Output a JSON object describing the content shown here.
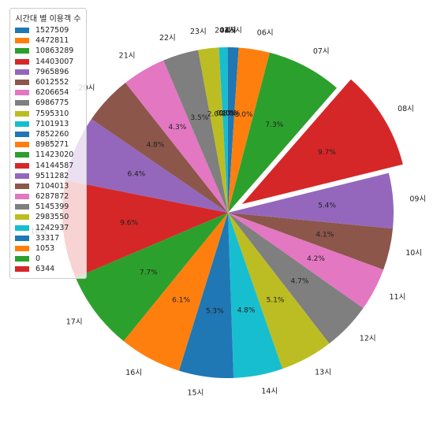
{
  "chart_data": {
    "type": "pie",
    "legend": {
      "title": "시간대 별 이용객 수",
      "placement": "top-left"
    },
    "start_angle_deg": 90,
    "counterclockwise": false,
    "exploded_label": "08시",
    "slices": [
      {
        "label": "05시",
        "value": 1527509,
        "pct_label": "1.0%",
        "color": "#1f77b4"
      },
      {
        "label": "06시",
        "value": 4472811,
        "pct_label": "3.0%",
        "color": "#ff7f0e"
      },
      {
        "label": "07시",
        "value": 10863289,
        "pct_label": "7.3%",
        "color": "#2ca02c"
      },
      {
        "label": "08시",
        "value": 14403007,
        "pct_label": "9.7%",
        "color": "#d62728"
      },
      {
        "label": "09시",
        "value": 7965896,
        "pct_label": "5.4%",
        "color": "#9467bd"
      },
      {
        "label": "10시",
        "value": 6012552,
        "pct_label": "4.1%",
        "color": "#8c564b"
      },
      {
        "label": "11시",
        "value": 6206654,
        "pct_label": "4.2%",
        "color": "#e377c2"
      },
      {
        "label": "12시",
        "value": 6986775,
        "pct_label": "4.7%",
        "color": "#7f7f7f"
      },
      {
        "label": "13시",
        "value": 7595310,
        "pct_label": "5.1%",
        "color": "#bcbd22"
      },
      {
        "label": "14시",
        "value": 7101913,
        "pct_label": "4.8%",
        "color": "#17becf"
      },
      {
        "label": "15시",
        "value": 7852260,
        "pct_label": "5.3%",
        "color": "#1f77b4"
      },
      {
        "label": "16시",
        "value": 8985271,
        "pct_label": "6.1%",
        "color": "#ff7f0e"
      },
      {
        "label": "17시",
        "value": 11423020,
        "pct_label": "7.7%",
        "color": "#2ca02c"
      },
      {
        "label": "18시",
        "value": 14144587,
        "pct_label": "9.6%",
        "color": "#d62728"
      },
      {
        "label": "19시",
        "value": 9511282,
        "pct_label": "6.4%",
        "color": "#9467bd"
      },
      {
        "label": "20시",
        "value": 7104013,
        "pct_label": "4.8%",
        "color": "#8c564b"
      },
      {
        "label": "21시",
        "value": 6287872,
        "pct_label": "4.3%",
        "color": "#e377c2"
      },
      {
        "label": "22시",
        "value": 5145399,
        "pct_label": "3.5%",
        "color": "#7f7f7f"
      },
      {
        "label": "23시",
        "value": 2983550,
        "pct_label": "2.0%",
        "color": "#bcbd22"
      },
      {
        "label": "24시",
        "value": 1242937,
        "pct_label": "0.8%",
        "color": "#17becf"
      },
      {
        "label": "01시",
        "value": 33317,
        "pct_label": "0.0%",
        "color": "#1f77b4"
      },
      {
        "label": "02시",
        "value": 1053,
        "pct_label": "0.0%",
        "color": "#ff7f0e"
      },
      {
        "label": "03시",
        "value": 0,
        "pct_label": "0.0%",
        "color": "#2ca02c"
      },
      {
        "label": "04시",
        "value": 6344,
        "pct_label": "0.0%",
        "color": "#d62728"
      }
    ]
  }
}
